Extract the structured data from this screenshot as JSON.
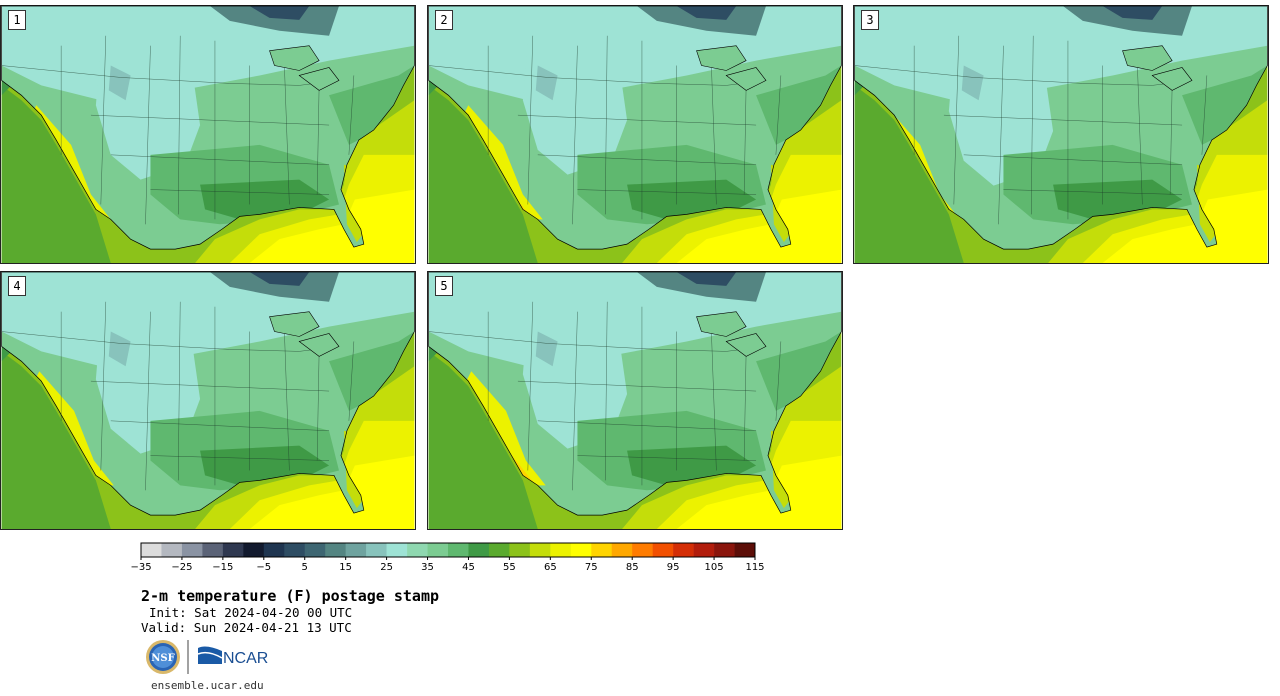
{
  "panels": [
    {
      "label": "1"
    },
    {
      "label": "2"
    },
    {
      "label": "3"
    },
    {
      "label": "4"
    },
    {
      "label": "5"
    }
  ],
  "colorbar": {
    "ticks": [
      "−35",
      "−25",
      "−15",
      "−5",
      "5",
      "15",
      "25",
      "35",
      "45",
      "55",
      "65",
      "75",
      "85",
      "95",
      "105",
      "115"
    ],
    "colors": [
      "#dcdcdc",
      "#b4b8c0",
      "#8a93a3",
      "#5b6377",
      "#2f3850",
      "#121a2e",
      "#1f3550",
      "#2e4d63",
      "#3e6672",
      "#548582",
      "#6fa39f",
      "#88c3bc",
      "#9ee3d5",
      "#8fd8b0",
      "#7ccc92",
      "#5fb86f",
      "#3f9a46",
      "#5aaa2e",
      "#8cc21a",
      "#c4dd0a",
      "#ecf200",
      "#ffff00",
      "#ffd400",
      "#ffa800",
      "#ff7c00",
      "#f25000",
      "#d42e06",
      "#b21d0c",
      "#8a150c",
      "#5c0e08"
    ]
  },
  "title": "2-m temperature (F) postage stamp",
  "init_label": "Init:",
  "init_value": "Sat 2024-04-20 00 UTC",
  "valid_label": "Valid:",
  "valid_value": "Sun 2024-04-21 13 UTC",
  "logos": {
    "nsf": "NSF",
    "ncar": "NCAR"
  },
  "website": "ensemble.ucar.edu"
}
